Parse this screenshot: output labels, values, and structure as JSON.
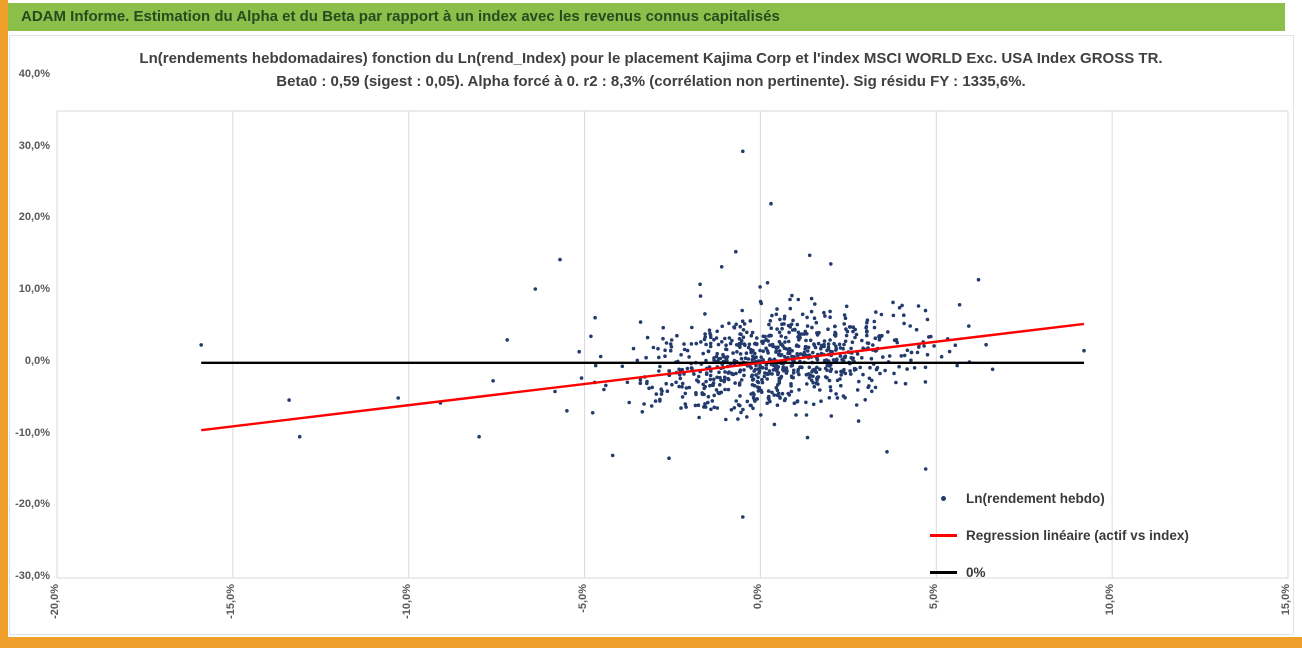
{
  "header": {
    "title": "ADAM Informe. Estimation du Alpha et du Beta par rapport à un index avec les revenus connus capitalisés"
  },
  "colors": {
    "header_bg": "#8cbe4a",
    "header_text": "#234d20",
    "accent_strip": "#eea02a",
    "scatter": "#233a6c",
    "regression": "#fe0000",
    "zero_line": "#000000",
    "gridline": "#d9d9d9",
    "title_text": "#404040",
    "tick_text": "#595959",
    "legend_text": "#3a3a3a"
  },
  "chart_data": {
    "type": "scatter",
    "title_line1": "Ln(rendements hebdomadaires) fonction du Ln(rend_Index) pour le placement Kajima Corp et l'index MSCI WORLD  Exc. USA Index GROSS TR.",
    "title_line2": "Beta0 : 0,59 (sigest : 0,05).  Alpha forcé à 0. r2 : 8,3% (corrélation non pertinente). Sig résidu FY : 1335,6%.",
    "stats": {
      "beta0": "0,59",
      "sigest": "0,05",
      "alpha_force": "0",
      "r2": "8,3%",
      "sig_residu_fy": "1335,6%"
    },
    "xlim": [
      -20,
      15
    ],
    "ylim": [
      -30,
      40
    ],
    "x_ticks": [
      {
        "value": -20,
        "label": "-20,0%"
      },
      {
        "value": -15,
        "label": "-15,0%"
      },
      {
        "value": -10,
        "label": "-10,0%"
      },
      {
        "value": -5,
        "label": "-5,0%"
      },
      {
        "value": 0,
        "label": "0,0%"
      },
      {
        "value": 5,
        "label": "5,0%"
      },
      {
        "value": 10,
        "label": "10,0%"
      },
      {
        "value": 15,
        "label": "15,0%"
      }
    ],
    "y_ticks": [
      {
        "value": 40,
        "label": "40,0%"
      },
      {
        "value": 30,
        "label": "30,0%"
      },
      {
        "value": 20,
        "label": "20,0%"
      },
      {
        "value": 10,
        "label": "10,0%"
      },
      {
        "value": 0,
        "label": "0,0%"
      },
      {
        "value": -10,
        "label": "-10,0%"
      },
      {
        "value": -20,
        "label": "-20,0%"
      },
      {
        "value": -30,
        "label": "-30,0%"
      }
    ],
    "series": [
      {
        "name": "Ln(rendement hebdo)",
        "type": "scatter",
        "marker": "dot",
        "cluster": {
          "n": 810,
          "seed": 1335,
          "x_mean": 0.45,
          "x_sd": 1.95,
          "beta": 0.59,
          "resid_sd": 3.55,
          "x_range": [
            -7.5,
            7.6
          ],
          "y_range": [
            -12.6,
            16.0
          ]
        },
        "outlier_points": [
          [
            -15.9,
            2.5
          ],
          [
            -13.4,
            -5.2
          ],
          [
            -13.1,
            -10.3
          ],
          [
            -10.3,
            -4.9
          ],
          [
            -9.1,
            -5.6
          ],
          [
            -8.0,
            -10.3
          ],
          [
            -7.6,
            -2.5
          ],
          [
            -7.2,
            3.2
          ],
          [
            -6.4,
            10.3
          ],
          [
            -5.7,
            14.4
          ],
          [
            -4.7,
            6.3
          ],
          [
            -4.2,
            -12.9
          ],
          [
            -2.6,
            -13.3
          ],
          [
            -1.1,
            13.4
          ],
          [
            -0.7,
            15.5
          ],
          [
            -0.5,
            29.5
          ],
          [
            -0.5,
            -21.5
          ],
          [
            0.3,
            22.2
          ],
          [
            1.4,
            15.0
          ],
          [
            2.0,
            13.8
          ],
          [
            3.6,
            -12.4
          ],
          [
            4.7,
            -14.8
          ],
          [
            6.2,
            11.6
          ],
          [
            6.6,
            -0.9
          ],
          [
            9.2,
            1.7
          ]
        ]
      },
      {
        "name": "Regression linéaire (actif vs index)",
        "type": "line",
        "slope": 0.59,
        "intercept": 0,
        "x_start": -15.9,
        "x_end": 9.2
      },
      {
        "name": "0%",
        "type": "line",
        "slope": 0,
        "intercept": 0,
        "x_start": -15.9,
        "x_end": 9.2
      }
    ],
    "legend": {
      "position": "bottom-right"
    }
  }
}
